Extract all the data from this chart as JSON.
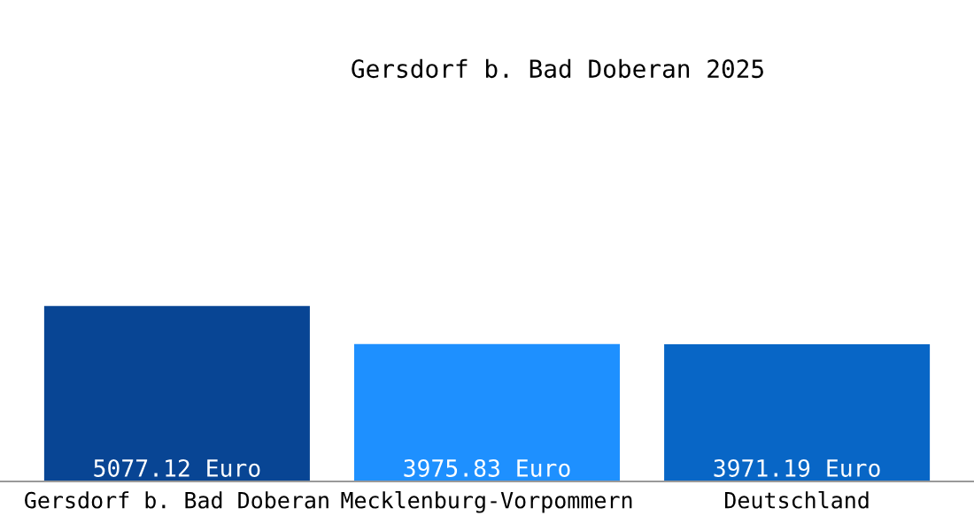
{
  "chart_data": {
    "type": "bar",
    "title": "Gersdorf b. Bad Doberan 2025",
    "categories": [
      "Gersdorf b. Bad Doberan",
      "Mecklenburg-Vorpommern",
      "Deutschland"
    ],
    "values": [
      5077.12,
      3975.83,
      3971.19
    ],
    "colors": [
      "#084594",
      "#1e90ff",
      "#0866c6"
    ],
    "value_labels": [
      "5077.12 Euro",
      "3975.83 Euro",
      "3971.19 Euro"
    ],
    "grid": false,
    "legend": false
  }
}
